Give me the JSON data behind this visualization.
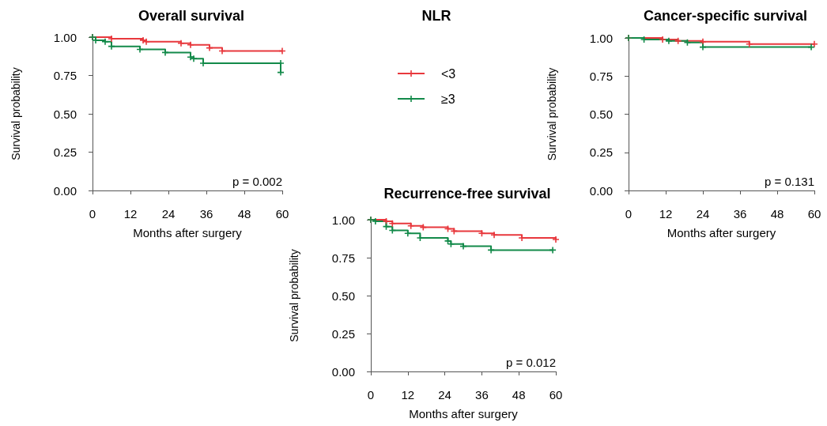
{
  "chart_data": [
    {
      "type": "step",
      "title": "Overall survival",
      "xlabel": "Months after surgery",
      "ylabel": "Survival probability",
      "xlim": [
        0,
        60
      ],
      "xticks": [
        0,
        12,
        24,
        36,
        48,
        60
      ],
      "ylim": [
        0,
        1
      ],
      "yticks": [
        {
          "value": 0,
          "label": "0.00"
        },
        {
          "value": 0.25,
          "label": "0.25"
        },
        {
          "value": 0.5,
          "label": "0.50"
        },
        {
          "value": 0.75,
          "label": "0.75"
        },
        {
          "value": 1,
          "label": "1.00"
        }
      ],
      "marker": "cross",
      "legend": "right",
      "legend_title": "NLR",
      "annotations": [
        "p = 0.002"
      ],
      "series": [
        {
          "name": "<3",
          "color": "#e8383d",
          "x": [
            0,
            6,
            16,
            17,
            28,
            31,
            37,
            41,
            60
          ],
          "values": [
            1,
            0.99,
            0.98,
            0.97,
            0.96,
            0.95,
            0.93,
            0.91,
            0.91
          ]
        },
        {
          "name": "≥3",
          "color": "#138a4a",
          "x": [
            0,
            1,
            4,
            6,
            15,
            23,
            31,
            32,
            35,
            59.5,
            59.5
          ],
          "values": [
            1,
            0.98,
            0.97,
            0.94,
            0.92,
            0.9,
            0.87,
            0.86,
            0.83,
            0.83,
            0.77
          ]
        }
      ]
    },
    {
      "type": "step",
      "title": "Cancer-specific survival",
      "xlabel": "Months after surgery",
      "ylabel": "Survival probability",
      "xlim": [
        0,
        60
      ],
      "xticks": [
        0,
        12,
        24,
        36,
        48,
        60
      ],
      "ylim": [
        0,
        1
      ],
      "yticks": [
        {
          "value": 0,
          "label": "0.00"
        },
        {
          "value": 0.25,
          "label": "0.25"
        },
        {
          "value": 0.5,
          "label": "0.50"
        },
        {
          "value": 0.75,
          "label": "0.75"
        },
        {
          "value": 1,
          "label": "1.00"
        }
      ],
      "marker": "cross",
      "annotations": [
        "p = 0.131"
      ],
      "series": [
        {
          "color": "#e8383d",
          "x": [
            0,
            11,
            16,
            24,
            39,
            60
          ],
          "values": [
            1,
            0.99,
            0.98,
            0.975,
            0.96,
            0.96
          ]
        },
        {
          "color": "#138a4a",
          "x": [
            0,
            5,
            13,
            19,
            24,
            59
          ],
          "values": [
            1,
            0.99,
            0.98,
            0.97,
            0.94,
            0.94
          ]
        }
      ]
    },
    {
      "type": "step",
      "title": "Recurrence-free survival",
      "xlabel": "Months after surgery",
      "ylabel": "Survival probability",
      "xlim": [
        0,
        60
      ],
      "xticks": [
        0,
        12,
        24,
        36,
        48,
        60
      ],
      "ylim": [
        0,
        1
      ],
      "yticks": [
        {
          "value": 0,
          "label": "0.00"
        },
        {
          "value": 0.25,
          "label": "0.25"
        },
        {
          "value": 0.5,
          "label": "0.50"
        },
        {
          "value": 0.75,
          "label": "0.75"
        },
        {
          "value": 1,
          "label": "1.00"
        }
      ],
      "marker": "cross",
      "annotations": [
        "p = 0.012"
      ],
      "series": [
        {
          "color": "#e8383d",
          "x": [
            0,
            5,
            7,
            13,
            17,
            25,
            27,
            36,
            40,
            49,
            60
          ],
          "values": [
            1,
            0.99,
            0.975,
            0.96,
            0.95,
            0.94,
            0.925,
            0.91,
            0.9,
            0.88,
            0.87
          ]
        },
        {
          "color": "#138a4a",
          "x": [
            0,
            1.5,
            5,
            7,
            12,
            16,
            25,
            26,
            30,
            39,
            59
          ],
          "values": [
            1,
            0.99,
            0.955,
            0.93,
            0.91,
            0.88,
            0.86,
            0.84,
            0.825,
            0.8,
            0.8
          ]
        }
      ]
    }
  ]
}
